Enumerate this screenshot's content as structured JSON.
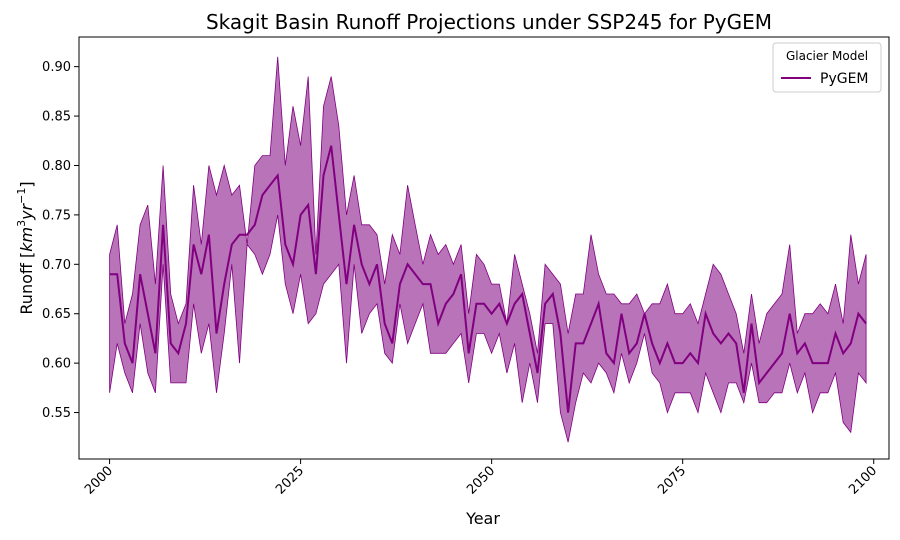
{
  "chart_data": {
    "type": "line",
    "title": "Skagit Basin Runoff Projections under SSP245 for PyGEM",
    "xlabel": "Year",
    "ylabel": "Runoff [km³yr⁻¹]",
    "ylabel_parts": {
      "main": "Runoff [",
      "km": "km",
      "sup3": "3",
      "yr": "yr",
      "supneg": "−1",
      "close": "]"
    },
    "xlim": [
      1996,
      2102
    ],
    "ylim": [
      0.503,
      0.93
    ],
    "xticks": [
      2000,
      2025,
      2050,
      2075,
      2100
    ],
    "yticks": [
      0.55,
      0.6,
      0.65,
      0.7,
      0.75,
      0.8,
      0.85,
      0.9
    ],
    "ytick_labels": [
      "0.55",
      "0.60",
      "0.65",
      "0.70",
      "0.75",
      "0.80",
      "0.85",
      "0.90"
    ],
    "grid": false,
    "legend": {
      "title": "Glacier Model",
      "entries": [
        "PyGEM"
      ],
      "location": "top-right"
    },
    "colors": {
      "line": "#800080",
      "band": "#800080",
      "band_opacity": 0.55
    },
    "series": [
      {
        "name": "PyGEM",
        "x": [
          2000,
          2001,
          2002,
          2003,
          2004,
          2005,
          2006,
          2007,
          2008,
          2009,
          2010,
          2011,
          2012,
          2013,
          2014,
          2015,
          2016,
          2017,
          2018,
          2019,
          2020,
          2021,
          2022,
          2023,
          2024,
          2025,
          2026,
          2027,
          2028,
          2029,
          2030,
          2031,
          2032,
          2033,
          2034,
          2035,
          2036,
          2037,
          2038,
          2039,
          2040,
          2041,
          2042,
          2043,
          2044,
          2045,
          2046,
          2047,
          2048,
          2049,
          2050,
          2051,
          2052,
          2053,
          2054,
          2055,
          2056,
          2057,
          2058,
          2059,
          2060,
          2061,
          2062,
          2063,
          2064,
          2065,
          2066,
          2067,
          2068,
          2069,
          2070,
          2071,
          2072,
          2073,
          2074,
          2075,
          2076,
          2077,
          2078,
          2079,
          2080,
          2081,
          2082,
          2083,
          2084,
          2085,
          2086,
          2087,
          2088,
          2089,
          2090,
          2091,
          2092,
          2093,
          2094,
          2095,
          2096,
          2097,
          2098,
          2099
        ],
        "values": [
          0.69,
          0.69,
          0.62,
          0.6,
          0.69,
          0.65,
          0.61,
          0.74,
          0.62,
          0.61,
          0.64,
          0.72,
          0.69,
          0.73,
          0.63,
          0.68,
          0.72,
          0.73,
          0.73,
          0.74,
          0.77,
          0.78,
          0.79,
          0.72,
          0.7,
          0.75,
          0.76,
          0.69,
          0.79,
          0.82,
          0.75,
          0.68,
          0.74,
          0.7,
          0.68,
          0.7,
          0.64,
          0.62,
          0.68,
          0.7,
          0.69,
          0.68,
          0.68,
          0.64,
          0.66,
          0.67,
          0.69,
          0.61,
          0.66,
          0.66,
          0.65,
          0.66,
          0.64,
          0.66,
          0.67,
          0.63,
          0.59,
          0.66,
          0.67,
          0.63,
          0.55,
          0.62,
          0.62,
          0.64,
          0.66,
          0.61,
          0.6,
          0.65,
          0.61,
          0.62,
          0.65,
          0.62,
          0.6,
          0.62,
          0.6,
          0.6,
          0.61,
          0.6,
          0.65,
          0.63,
          0.62,
          0.63,
          0.62,
          0.57,
          0.64,
          0.58,
          0.59,
          0.6,
          0.61,
          0.65,
          0.61,
          0.62,
          0.6,
          0.6,
          0.6,
          0.63,
          0.61,
          0.62,
          0.65,
          0.64
        ],
        "lower": [
          0.57,
          0.62,
          0.59,
          0.57,
          0.64,
          0.59,
          0.57,
          0.7,
          0.58,
          0.58,
          0.58,
          0.66,
          0.61,
          0.64,
          0.57,
          0.63,
          0.7,
          0.6,
          0.72,
          0.71,
          0.69,
          0.71,
          0.75,
          0.68,
          0.65,
          0.69,
          0.64,
          0.65,
          0.68,
          0.69,
          0.7,
          0.6,
          0.7,
          0.63,
          0.65,
          0.66,
          0.61,
          0.6,
          0.66,
          0.62,
          0.64,
          0.66,
          0.61,
          0.61,
          0.61,
          0.62,
          0.63,
          0.58,
          0.63,
          0.63,
          0.61,
          0.63,
          0.59,
          0.62,
          0.56,
          0.6,
          0.56,
          0.64,
          0.64,
          0.55,
          0.52,
          0.56,
          0.59,
          0.58,
          0.6,
          0.59,
          0.57,
          0.61,
          0.58,
          0.6,
          0.63,
          0.59,
          0.58,
          0.55,
          0.57,
          0.57,
          0.57,
          0.55,
          0.59,
          0.57,
          0.55,
          0.58,
          0.58,
          0.56,
          0.6,
          0.56,
          0.56,
          0.57,
          0.57,
          0.6,
          0.57,
          0.59,
          0.55,
          0.57,
          0.57,
          0.59,
          0.54,
          0.53,
          0.59,
          0.58
        ],
        "upper": [
          0.71,
          0.74,
          0.64,
          0.67,
          0.74,
          0.76,
          0.68,
          0.8,
          0.67,
          0.64,
          0.66,
          0.78,
          0.72,
          0.8,
          0.77,
          0.8,
          0.77,
          0.78,
          0.72,
          0.8,
          0.81,
          0.81,
          0.91,
          0.8,
          0.86,
          0.82,
          0.89,
          0.71,
          0.86,
          0.89,
          0.84,
          0.75,
          0.79,
          0.74,
          0.74,
          0.73,
          0.68,
          0.73,
          0.71,
          0.78,
          0.74,
          0.7,
          0.73,
          0.71,
          0.72,
          0.7,
          0.72,
          0.65,
          0.71,
          0.7,
          0.68,
          0.68,
          0.64,
          0.71,
          0.68,
          0.65,
          0.61,
          0.7,
          0.69,
          0.68,
          0.63,
          0.67,
          0.67,
          0.73,
          0.69,
          0.67,
          0.67,
          0.66,
          0.66,
          0.67,
          0.65,
          0.66,
          0.66,
          0.68,
          0.65,
          0.65,
          0.66,
          0.64,
          0.67,
          0.7,
          0.69,
          0.67,
          0.65,
          0.61,
          0.67,
          0.62,
          0.65,
          0.66,
          0.67,
          0.72,
          0.63,
          0.65,
          0.65,
          0.66,
          0.65,
          0.68,
          0.64,
          0.73,
          0.68,
          0.71
        ]
      }
    ]
  }
}
